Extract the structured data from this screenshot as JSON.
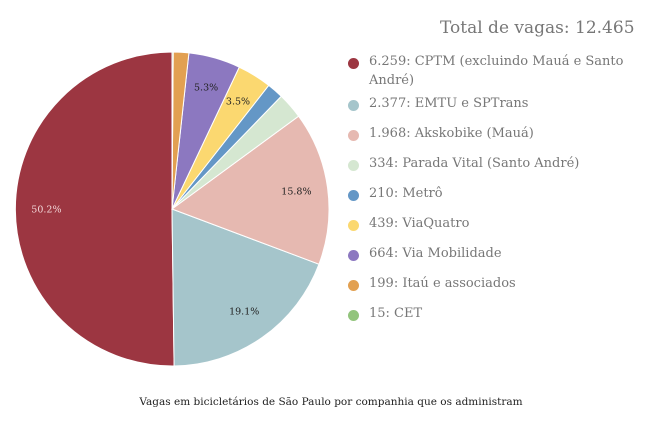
{
  "chart_data": {
    "type": "pie",
    "total_label": "Total de vagas: 12.465",
    "caption": "Vagas em bicicletários de São Paulo por companhia que os administram",
    "legend_placement": "right",
    "start": "top, counterclockwise starting with largest slice on right",
    "slices": [
      {
        "label": "6.259: CPTM (excluindo Mauá e Santo André)",
        "value": 6259,
        "pct_label": "50.2%",
        "color": "#9c3641",
        "label_color": "#f2d6d8"
      },
      {
        "label": "2.377: EMTU e SPTrans",
        "value": 2377,
        "pct_label": "19.1%",
        "color": "#a5c5cb",
        "label_color": "#222222"
      },
      {
        "label": "1.968: Akskobike (Mauá)",
        "value": 1968,
        "pct_label": "15.8%",
        "color": "#e6b9b1",
        "label_color": "#222222"
      },
      {
        "label": "334: Parada Vital (Santo André)",
        "value": 334,
        "pct_label": "",
        "color": "#d5e7d1",
        "label_color": "#222222"
      },
      {
        "label": "210: Metrô",
        "value": 210,
        "pct_label": "",
        "color": "#6497c6",
        "label_color": "#222222"
      },
      {
        "label": "439: ViaQuatro",
        "value": 439,
        "pct_label": "3.5%",
        "color": "#fbd870",
        "label_color": "#222222"
      },
      {
        "label": "664: Via Mobilidade",
        "value": 664,
        "pct_label": "5.3%",
        "color": "#8c78c0",
        "label_color": "#222222"
      },
      {
        "label": "199: Itaú e associados",
        "value": 199,
        "pct_label": "",
        "color": "#e2a051",
        "label_color": "#222222"
      },
      {
        "label": "15: CET",
        "value": 15,
        "pct_label": "",
        "color": "#92c47c",
        "label_color": "#222222"
      }
    ]
  }
}
